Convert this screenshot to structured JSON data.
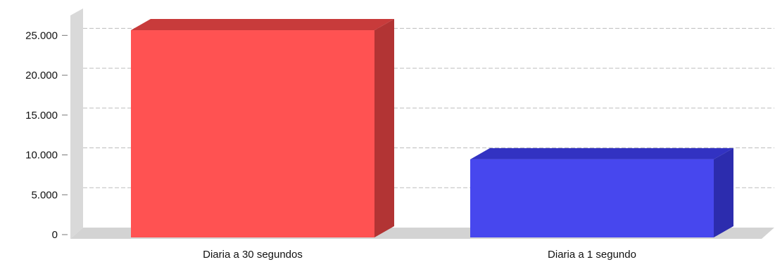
{
  "chart_data": {
    "type": "bar",
    "title": "",
    "xlabel": "",
    "ylabel": "",
    "categories": [
      "Diaria a 30 segundos",
      "Diaria a 1 segundo"
    ],
    "values": [
      26000,
      9800
    ],
    "ylim": [
      0,
      27500
    ],
    "yticks": [
      {
        "value": 0,
        "label": "0"
      },
      {
        "value": 5000,
        "label": "5.000"
      },
      {
        "value": 10000,
        "label": "10.000"
      },
      {
        "value": 15000,
        "label": "15.000"
      },
      {
        "value": 20000,
        "label": "20.000"
      },
      {
        "value": 25000,
        "label": "25.000"
      }
    ],
    "grid": true,
    "style": "3d",
    "bar_colors": [
      {
        "front": "#ff5252",
        "side": "#b23434",
        "top": "#c83b3b"
      },
      {
        "front": "#4747ee",
        "side": "#2c2cae",
        "top": "#3232c2"
      }
    ]
  }
}
